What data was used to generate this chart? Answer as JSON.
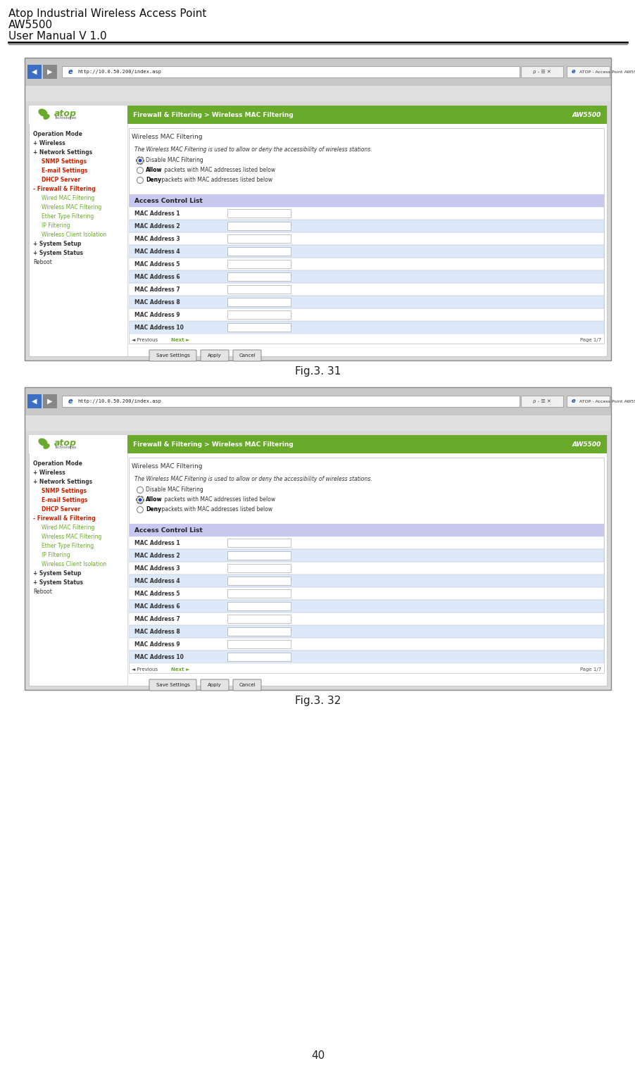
{
  "title_line1": "Atop Industrial Wireless Access Point",
  "title_line2": "AW5500",
  "title_line3": "User Manual V 1.0",
  "page_number": "40",
  "fig1_caption": "Fig.3. 31",
  "fig2_caption": "Fig.3. 32",
  "header_bg": "#6aaa2a",
  "header_text": "Firewall & Filtering > Wireless MAC Filtering",
  "header_right": "AW5500",
  "acl_header_bg": "#c8c8f0",
  "acl_header_text": "Access Control List",
  "url": "http://10.0.50.200/index.asp",
  "atop_green": "#6aaa2a",
  "sidebar_bold_dark": "#333333",
  "sidebar_red": "#cc2200",
  "sidebar_green": "#6aaa2a",
  "nav_items": [
    "Operation Mode",
    "+ Wireless",
    "+ Network Settings",
    "SNMP Settings",
    "E-mail Settings",
    "DHCP Server",
    "- Firewall & Filtering",
    "Wired MAC Filtering",
    "Wireless MAC Filtering",
    "Ether Type Filtering",
    "IP Filtering",
    "Wireless Client Isolation",
    "+ System Setup",
    "+ System Status",
    "Reboot"
  ],
  "mac_addresses": [
    "MAC Address 1",
    "MAC Address 2",
    "MAC Address 3",
    "MAC Address 4",
    "MAC Address 5",
    "MAC Address 6",
    "MAC Address 7",
    "MAC Address 8",
    "MAC Address 9",
    "MAC Address 10"
  ],
  "bg_color": "#ffffff",
  "row_alt1": "#ffffff",
  "row_alt2": "#dde8f8",
  "fig1_selected": 1,
  "fig2_selected": 2,
  "radio_options": [
    "Disable MAC Filtering",
    "Allow packets with MAC addresses listed below",
    "Deny packets with MAC addresses listed below"
  ],
  "content_title": "Wireless MAC Filtering",
  "content_desc1": "The Wireless MAC Filtering is used to allow or deny the accessibility of wireless stations.",
  "next_label": "Next",
  "prev_label": "Previous",
  "page_label": "Page 1/7",
  "btn_save": "Save Settings",
  "btn_apply": "Apply",
  "btn_cancel": "Cancel"
}
